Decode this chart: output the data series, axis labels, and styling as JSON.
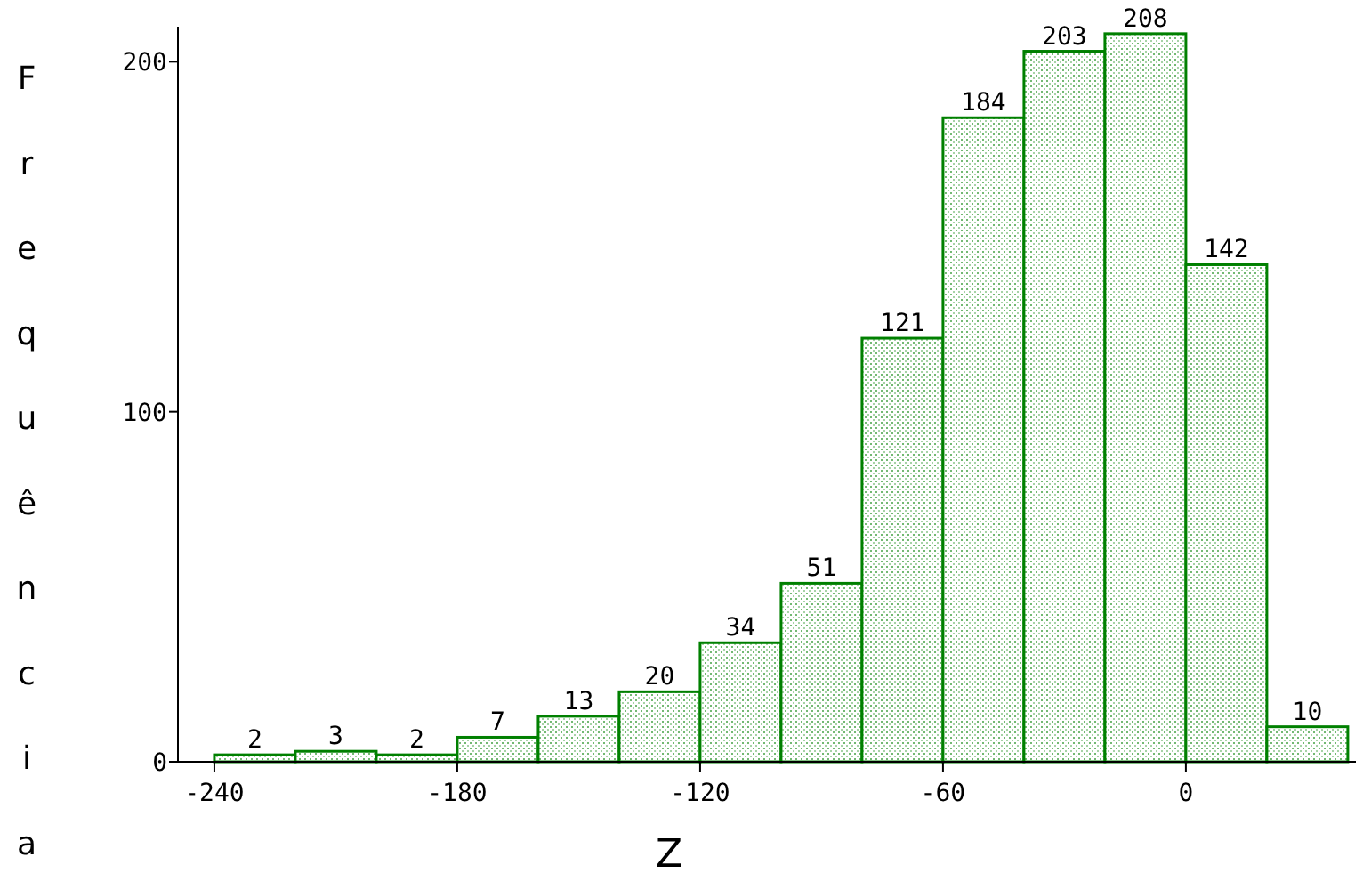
{
  "chart_data": {
    "type": "histogram",
    "xlabel": "Z",
    "ylabel": "Frequência",
    "bins": [
      -240,
      -220,
      -200,
      -180,
      -160,
      -140,
      -120,
      -100,
      -80,
      -60,
      -40,
      -20,
      0,
      20,
      40
    ],
    "values": [
      2,
      3,
      2,
      7,
      13,
      20,
      34,
      51,
      121,
      184,
      203,
      208,
      142,
      10
    ],
    "color": "#008000",
    "data_labels": true,
    "xlim": [
      -249,
      42
    ],
    "ylim": [
      0,
      210
    ],
    "xticks": [
      -240,
      -180,
      -120,
      -60,
      0
    ],
    "yticks": [
      0,
      100,
      200
    ],
    "grid": false
  }
}
